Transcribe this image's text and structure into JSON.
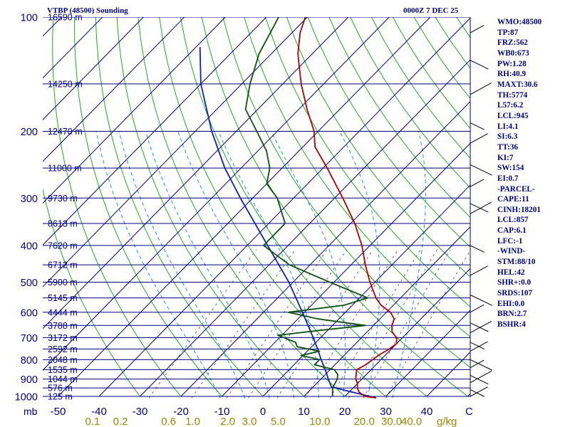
{
  "header": {
    "station": "VTBP (48500) Sounding",
    "time": "0000Z  7 DEC 25"
  },
  "indices": [
    "WMO:48500",
    "TP:87",
    "FRZ:562",
    "WB0:673",
    "PW:1.28",
    "RH:40.9",
    "MAXT:30.6",
    "TH:5774",
    "L57:6.2",
    "LCL:945",
    "LI:4.1",
    "SI:6.3",
    "TT:36",
    "KI:7",
    "SW:154",
    "EI:0.7",
    "-PARCEL-",
    "CAPE:11",
    "CINH:18201",
    "LCL:857",
    "CAP:6.1",
    "LFC:-1",
    "-WIND-",
    "STM:88/10",
    "HEL:42",
    "SHR+:0.0",
    "SRDS:107",
    "EHI:0.0",
    "BRN:2.7",
    "BSHR:4"
  ],
  "colors": {
    "isobar": "#000080",
    "isotherm": "#000080",
    "dry_adiabat": "#22aa22",
    "moist_adiabat": "#1e90ff",
    "mixing_ratio": "#444444",
    "temperature": "#b00000",
    "dewpoint": "#105010",
    "parcel": "#1020b0",
    "axis_text": "#000080",
    "mixing_text": "#998800"
  },
  "chart_data": {
    "type": "skew-t log-p sounding",
    "pressure_unit": "mb",
    "pressure_levels": [
      100,
      200,
      300,
      400,
      500,
      600,
      700,
      800,
      900,
      1000
    ],
    "temperature_ticks": [
      -50,
      -40,
      -30,
      -20,
      -10,
      0,
      10,
      20,
      30,
      40
    ],
    "temperature_unit_label": "C",
    "mixing_ratio_ticks": [
      "0.1",
      "0.2",
      "0.6",
      "1.0",
      "2.0",
      "3.0",
      "5.0",
      "10.0",
      "20.0",
      "30.0",
      "40.0"
    ],
    "mixing_ratio_unit": "g/kg",
    "height_labels": [
      {
        "p": 100,
        "text": "16590 m"
      },
      {
        "p": 150,
        "text": "14250 m"
      },
      {
        "p": 200,
        "text": "12470 m"
      },
      {
        "p": 250,
        "text": "11000 m"
      },
      {
        "p": 300,
        "text": "9730 m"
      },
      {
        "p": 350,
        "text": "8613 m"
      },
      {
        "p": 400,
        "text": "7620 m"
      },
      {
        "p": 450,
        "text": "6712 m"
      },
      {
        "p": 500,
        "text": "5900 m"
      },
      {
        "p": 550,
        "text": "5145 m"
      },
      {
        "p": 600,
        "text": "4444 m"
      },
      {
        "p": 650,
        "text": "3788 m"
      },
      {
        "p": 700,
        "text": "3172 m"
      },
      {
        "p": 750,
        "text": "2592 m"
      },
      {
        "p": 800,
        "text": "2048 m"
      },
      {
        "p": 850,
        "text": "1535 m"
      },
      {
        "p": 900,
        "text": "1044 m"
      },
      {
        "p": 950,
        "text": "576 m"
      },
      {
        "p": 1000,
        "text": "125 m"
      }
    ],
    "temperature_profile": [
      {
        "p": 1009,
        "t": 28.0
      },
      {
        "p": 1000,
        "t": 25.0
      },
      {
        "p": 975,
        "t": 22.5
      },
      {
        "p": 950,
        "t": 21.0
      },
      {
        "p": 925,
        "t": 20.0
      },
      {
        "p": 900,
        "t": 18.5
      },
      {
        "p": 875,
        "t": 17.5
      },
      {
        "p": 850,
        "t": 16.5
      },
      {
        "p": 825,
        "t": 17.5
      },
      {
        "p": 800,
        "t": 18.0
      },
      {
        "p": 775,
        "t": 18.5
      },
      {
        "p": 750,
        "t": 19.5
      },
      {
        "p": 725,
        "t": 20.0
      },
      {
        "p": 700,
        "t": 18.5
      },
      {
        "p": 675,
        "t": 16.0
      },
      {
        "p": 650,
        "t": 14.5
      },
      {
        "p": 625,
        "t": 13.5
      },
      {
        "p": 600,
        "t": 11.0
      },
      {
        "p": 575,
        "t": 7.0
      },
      {
        "p": 550,
        "t": 4.0
      },
      {
        "p": 500,
        "t": -1.2
      },
      {
        "p": 450,
        "t": -6.5
      },
      {
        "p": 400,
        "t": -12.0
      },
      {
        "p": 350,
        "t": -19.0
      },
      {
        "p": 300,
        "t": -28.0
      },
      {
        "p": 250,
        "t": -39.0
      },
      {
        "p": 220,
        "t": -47.0
      },
      {
        "p": 200,
        "t": -51.0
      },
      {
        "p": 175,
        "t": -58.0
      },
      {
        "p": 150,
        "t": -65.5
      },
      {
        "p": 125,
        "t": -73.5
      },
      {
        "p": 110,
        "t": -78.0
      },
      {
        "p": 100,
        "t": -80.5
      }
    ],
    "dewpoint_profile": [
      {
        "p": 1000,
        "t": 17.0
      },
      {
        "p": 975,
        "t": 16.0
      },
      {
        "p": 950,
        "t": 15.0
      },
      {
        "p": 900,
        "t": 14.0
      },
      {
        "p": 875,
        "t": 13.0
      },
      {
        "p": 850,
        "t": 11.0
      },
      {
        "p": 825,
        "t": 5.0
      },
      {
        "p": 800,
        "t": 5.0
      },
      {
        "p": 780,
        "t": -0.5
      },
      {
        "p": 760,
        "t": 3.0
      },
      {
        "p": 740,
        "t": -3.5
      },
      {
        "p": 720,
        "t": -5.0
      },
      {
        "p": 690,
        "t": -11.0
      },
      {
        "p": 670,
        "t": -2.0
      },
      {
        "p": 650,
        "t": 8.0
      },
      {
        "p": 625,
        "t": -5.0
      },
      {
        "p": 600,
        "t": -14.0
      },
      {
        "p": 575,
        "t": -2.0
      },
      {
        "p": 550,
        "t": 2.0
      },
      {
        "p": 500,
        "t": -11.0
      },
      {
        "p": 450,
        "t": -25.0
      },
      {
        "p": 400,
        "t": -36.0
      },
      {
        "p": 350,
        "t": -36.0
      },
      {
        "p": 300,
        "t": -44.0
      },
      {
        "p": 275,
        "t": -50.0
      },
      {
        "p": 250,
        "t": -53.0
      },
      {
        "p": 225,
        "t": -58.0
      },
      {
        "p": 200,
        "t": -65.0
      },
      {
        "p": 175,
        "t": -73.0
      },
      {
        "p": 150,
        "t": -78.0
      },
      {
        "p": 125,
        "t": -83.0
      },
      {
        "p": 100,
        "t": -87.0
      }
    ],
    "parcel_profile": [
      {
        "p": 1009,
        "t": 28.0
      },
      {
        "p": 945,
        "t": 14.5
      },
      {
        "p": 900,
        "t": 11.8
      },
      {
        "p": 850,
        "t": 8.8
      },
      {
        "p": 800,
        "t": 5.4
      },
      {
        "p": 750,
        "t": 2.0
      },
      {
        "p": 700,
        "t": -1.8
      },
      {
        "p": 600,
        "t": -10.5
      },
      {
        "p": 500,
        "t": -21.0
      },
      {
        "p": 400,
        "t": -35.0
      },
      {
        "p": 300,
        "t": -53.0
      },
      {
        "p": 250,
        "t": -64.0
      },
      {
        "p": 200,
        "t": -76.0
      },
      {
        "p": 150,
        "t": -90.0
      },
      {
        "p": 120,
        "t": -99.0
      }
    ]
  }
}
